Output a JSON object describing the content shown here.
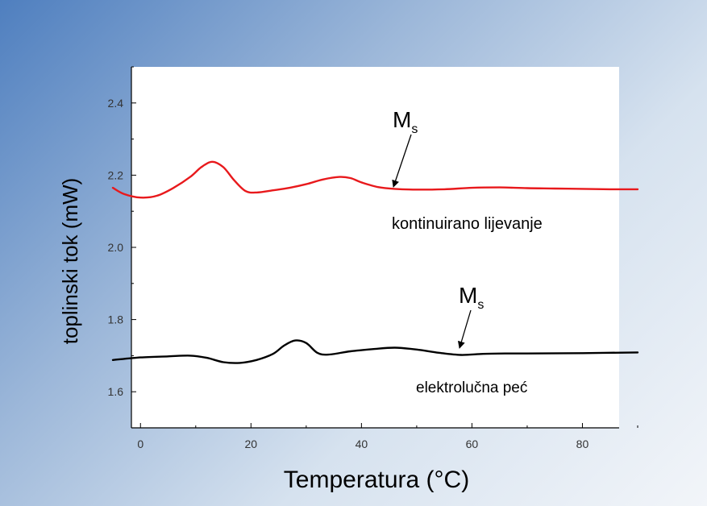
{
  "chart_data": {
    "type": "line",
    "xlabel": "Temperatura (°C)",
    "ylabel": "toplinski tok (mW)",
    "xlim": [
      -5,
      90
    ],
    "ylim": [
      1.5,
      2.5
    ],
    "x_ticks": [
      0,
      20,
      40,
      60,
      80
    ],
    "y_ticks": [
      1.6,
      1.8,
      2.0,
      2.2,
      2.4
    ],
    "grid": false,
    "series": [
      {
        "name": "kontinuirano lijevanje",
        "color": "#e8191c",
        "points": [
          [
            -5,
            2.165
          ],
          [
            -3,
            2.148
          ],
          [
            0,
            2.138
          ],
          [
            3,
            2.143
          ],
          [
            6,
            2.165
          ],
          [
            9,
            2.195
          ],
          [
            11,
            2.222
          ],
          [
            13,
            2.237
          ],
          [
            15,
            2.222
          ],
          [
            17,
            2.185
          ],
          [
            19,
            2.156
          ],
          [
            21,
            2.152
          ],
          [
            24,
            2.158
          ],
          [
            27,
            2.165
          ],
          [
            30,
            2.175
          ],
          [
            33,
            2.188
          ],
          [
            36,
            2.195
          ],
          [
            38,
            2.192
          ],
          [
            40,
            2.18
          ],
          [
            43,
            2.167
          ],
          [
            46,
            2.162
          ],
          [
            50,
            2.16
          ],
          [
            55,
            2.161
          ],
          [
            60,
            2.165
          ],
          [
            65,
            2.166
          ],
          [
            70,
            2.164
          ],
          [
            75,
            2.163
          ],
          [
            80,
            2.162
          ],
          [
            85,
            2.161
          ],
          [
            90,
            2.161
          ]
        ]
      },
      {
        "name": "elektrolučna peć",
        "color": "#000000",
        "points": [
          [
            -5,
            1.688
          ],
          [
            0,
            1.695
          ],
          [
            5,
            1.698
          ],
          [
            9,
            1.7
          ],
          [
            12,
            1.694
          ],
          [
            15,
            1.682
          ],
          [
            18,
            1.68
          ],
          [
            21,
            1.688
          ],
          [
            24,
            1.705
          ],
          [
            26,
            1.728
          ],
          [
            28,
            1.742
          ],
          [
            30,
            1.735
          ],
          [
            32,
            1.708
          ],
          [
            34,
            1.703
          ],
          [
            38,
            1.712
          ],
          [
            42,
            1.718
          ],
          [
            46,
            1.722
          ],
          [
            50,
            1.717
          ],
          [
            54,
            1.708
          ],
          [
            58,
            1.702
          ],
          [
            62,
            1.705
          ],
          [
            66,
            1.706
          ],
          [
            70,
            1.706
          ],
          [
            80,
            1.707
          ],
          [
            90,
            1.709
          ]
        ]
      }
    ],
    "annotations": [
      {
        "label": "M",
        "sub": "s",
        "series": 0,
        "arrow_to": [
          59,
          2.161
        ]
      },
      {
        "label": "M",
        "sub": "s",
        "series": 1,
        "arrow_to": [
          61,
          1.706
        ]
      }
    ]
  }
}
